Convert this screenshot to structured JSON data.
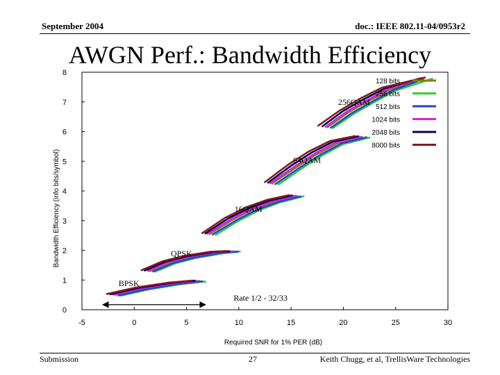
{
  "header": {
    "date": "September 2004",
    "doc": "doc.: IEEE 802.11-04/0953r2"
  },
  "title": "AWGN Perf.: Bandwidth Efficiency",
  "footer": {
    "left": "Submission",
    "page": "27",
    "right": "Keith Chugg, et al, TrellisWare Technologies"
  },
  "chart_data": {
    "type": "line",
    "xlabel": "Required SNR for 1% PER (dB)",
    "ylabel": "Bandwidth Efficiency (info bits/symbol)",
    "xlim": [
      -5,
      30
    ],
    "ylim": [
      0,
      8
    ],
    "xticks": [
      -5,
      0,
      5,
      10,
      15,
      20,
      25,
      30
    ],
    "yticks": [
      0,
      1,
      2,
      3,
      4,
      5,
      6,
      7,
      8
    ],
    "grid": false,
    "legend_position": "top-right",
    "annotations": [
      {
        "text": "256QAM",
        "x": 19.5,
        "y": 6.9
      },
      {
        "text": "64QAM",
        "x": 15.2,
        "y": 4.95
      },
      {
        "text": "16QAM",
        "x": 9.6,
        "y": 3.3
      },
      {
        "text": "QPSK",
        "x": 3.5,
        "y": 1.8
      },
      {
        "text": "BPSK",
        "x": -1.5,
        "y": 0.8
      },
      {
        "text": "Rate 1/2 - 32/33",
        "x": 9.5,
        "y": 0.3
      }
    ],
    "range_arrow": {
      "x_from": -3.0,
      "x_to": 6.8,
      "y": 0.17
    },
    "series": [
      {
        "name": "128 bits",
        "color": "#808000",
        "groups": [
          [
            [
              -1.8,
              0.5
            ],
            [
              1.0,
              0.72
            ],
            [
              4.0,
              0.88
            ],
            [
              6.2,
              0.97
            ]
          ],
          [
            [
              1.5,
              1.3
            ],
            [
              3.5,
              1.6
            ],
            [
              5.5,
              1.78
            ],
            [
              8.0,
              1.92
            ],
            [
              9.6,
              1.96
            ]
          ],
          [
            [
              7.2,
              2.55
            ],
            [
              9.5,
              3.05
            ],
            [
              11.5,
              3.4
            ],
            [
              13.5,
              3.65
            ],
            [
              15.6,
              3.83
            ]
          ],
          [
            [
              13.2,
              4.25
            ],
            [
              15.5,
              4.8
            ],
            [
              17.5,
              5.25
            ],
            [
              19.5,
              5.62
            ],
            [
              21.8,
              5.82
            ]
          ],
          [
            [
              18.5,
              6.15
            ],
            [
              20.5,
              6.65
            ],
            [
              22.5,
              7.05
            ],
            [
              24.5,
              7.42
            ],
            [
              27.0,
              7.72
            ]
          ]
        ]
      },
      {
        "name": "256 bits",
        "color": "#33cc33",
        "groups": [
          [
            [
              -1.3,
              0.47
            ],
            [
              1.5,
              0.69
            ],
            [
              4.5,
              0.86
            ],
            [
              6.8,
              0.95
            ]
          ],
          [
            [
              2.0,
              1.28
            ],
            [
              4.0,
              1.57
            ],
            [
              6.0,
              1.75
            ],
            [
              8.5,
              1.9
            ],
            [
              10.1,
              1.96
            ]
          ],
          [
            [
              7.8,
              2.52
            ],
            [
              10.0,
              3.0
            ],
            [
              12.0,
              3.36
            ],
            [
              14.0,
              3.62
            ],
            [
              16.2,
              3.82
            ]
          ],
          [
            [
              13.8,
              4.22
            ],
            [
              16.0,
              4.75
            ],
            [
              18.0,
              5.2
            ],
            [
              20.0,
              5.58
            ],
            [
              22.5,
              5.8
            ]
          ],
          [
            [
              19.0,
              6.12
            ],
            [
              21.0,
              6.6
            ],
            [
              23.0,
              7.0
            ],
            [
              25.0,
              7.38
            ],
            [
              28.5,
              7.78
            ]
          ]
        ]
      },
      {
        "name": "512 bits",
        "color": "#2244dd",
        "groups": [
          [
            [
              -1.5,
              0.48
            ],
            [
              1.3,
              0.7
            ],
            [
              4.3,
              0.87
            ],
            [
              6.5,
              0.96
            ]
          ],
          [
            [
              1.8,
              1.29
            ],
            [
              3.8,
              1.58
            ],
            [
              5.8,
              1.76
            ],
            [
              8.3,
              1.91
            ],
            [
              9.9,
              1.96
            ]
          ],
          [
            [
              7.5,
              2.53
            ],
            [
              9.8,
              3.02
            ],
            [
              11.8,
              3.38
            ],
            [
              13.8,
              3.63
            ],
            [
              15.9,
              3.82
            ]
          ],
          [
            [
              13.5,
              4.23
            ],
            [
              15.8,
              4.78
            ],
            [
              17.8,
              5.22
            ],
            [
              19.8,
              5.6
            ],
            [
              22.2,
              5.81
            ]
          ],
          [
            [
              18.8,
              6.13
            ],
            [
              20.8,
              6.62
            ],
            [
              22.8,
              7.02
            ],
            [
              24.8,
              7.4
            ],
            [
              27.6,
              7.76
            ]
          ]
        ]
      },
      {
        "name": "1024 bits",
        "color": "#dd22dd",
        "groups": [
          [
            [
              -2.0,
              0.51
            ],
            [
              0.8,
              0.73
            ],
            [
              3.8,
              0.89
            ],
            [
              6.0,
              0.97
            ]
          ],
          [
            [
              1.3,
              1.31
            ],
            [
              3.3,
              1.61
            ],
            [
              5.3,
              1.79
            ],
            [
              7.8,
              1.93
            ],
            [
              9.4,
              1.97
            ]
          ],
          [
            [
              7.0,
              2.56
            ],
            [
              9.3,
              3.06
            ],
            [
              11.3,
              3.41
            ],
            [
              13.3,
              3.66
            ],
            [
              15.4,
              3.84
            ]
          ],
          [
            [
              13.0,
              4.26
            ],
            [
              15.3,
              4.82
            ],
            [
              17.3,
              5.27
            ],
            [
              19.3,
              5.64
            ],
            [
              21.6,
              5.83
            ]
          ],
          [
            [
              18.3,
              6.16
            ],
            [
              20.3,
              6.67
            ],
            [
              22.3,
              7.07
            ],
            [
              24.3,
              7.44
            ],
            [
              27.2,
              7.78
            ]
          ]
        ]
      },
      {
        "name": "2048 bits",
        "color": "#000066",
        "groups": [
          [
            [
              -2.3,
              0.52
            ],
            [
              0.5,
              0.74
            ],
            [
              3.5,
              0.9
            ],
            [
              5.8,
              0.98
            ]
          ],
          [
            [
              1.0,
              1.32
            ],
            [
              3.0,
              1.62
            ],
            [
              5.0,
              1.8
            ],
            [
              7.5,
              1.94
            ],
            [
              9.1,
              1.97
            ]
          ],
          [
            [
              6.8,
              2.57
            ],
            [
              9.0,
              3.08
            ],
            [
              11.0,
              3.43
            ],
            [
              13.0,
              3.68
            ],
            [
              15.1,
              3.85
            ]
          ],
          [
            [
              12.8,
              4.28
            ],
            [
              15.0,
              4.85
            ],
            [
              17.0,
              5.3
            ],
            [
              19.0,
              5.66
            ],
            [
              21.4,
              5.84
            ]
          ],
          [
            [
              18.0,
              6.18
            ],
            [
              20.0,
              6.7
            ],
            [
              22.0,
              7.1
            ],
            [
              24.0,
              7.46
            ],
            [
              27.4,
              7.8
            ]
          ]
        ]
      },
      {
        "name": "8000 bits",
        "color": "#8b1a1a",
        "groups": [
          [
            [
              -2.6,
              0.53
            ],
            [
              0.2,
              0.75
            ],
            [
              3.2,
              0.91
            ],
            [
              5.5,
              0.98
            ]
          ],
          [
            [
              0.7,
              1.33
            ],
            [
              2.7,
              1.63
            ],
            [
              4.7,
              1.81
            ],
            [
              7.2,
              1.95
            ],
            [
              8.8,
              1.98
            ]
          ],
          [
            [
              6.5,
              2.58
            ],
            [
              8.7,
              3.1
            ],
            [
              10.7,
              3.45
            ],
            [
              12.7,
              3.7
            ],
            [
              14.8,
              3.86
            ]
          ],
          [
            [
              12.5,
              4.3
            ],
            [
              14.7,
              4.88
            ],
            [
              16.7,
              5.33
            ],
            [
              18.7,
              5.68
            ],
            [
              21.1,
              5.85
            ]
          ],
          [
            [
              17.6,
              6.2
            ],
            [
              19.7,
              6.72
            ],
            [
              21.7,
              7.13
            ],
            [
              23.7,
              7.48
            ],
            [
              27.8,
              7.82
            ]
          ]
        ]
      }
    ]
  }
}
